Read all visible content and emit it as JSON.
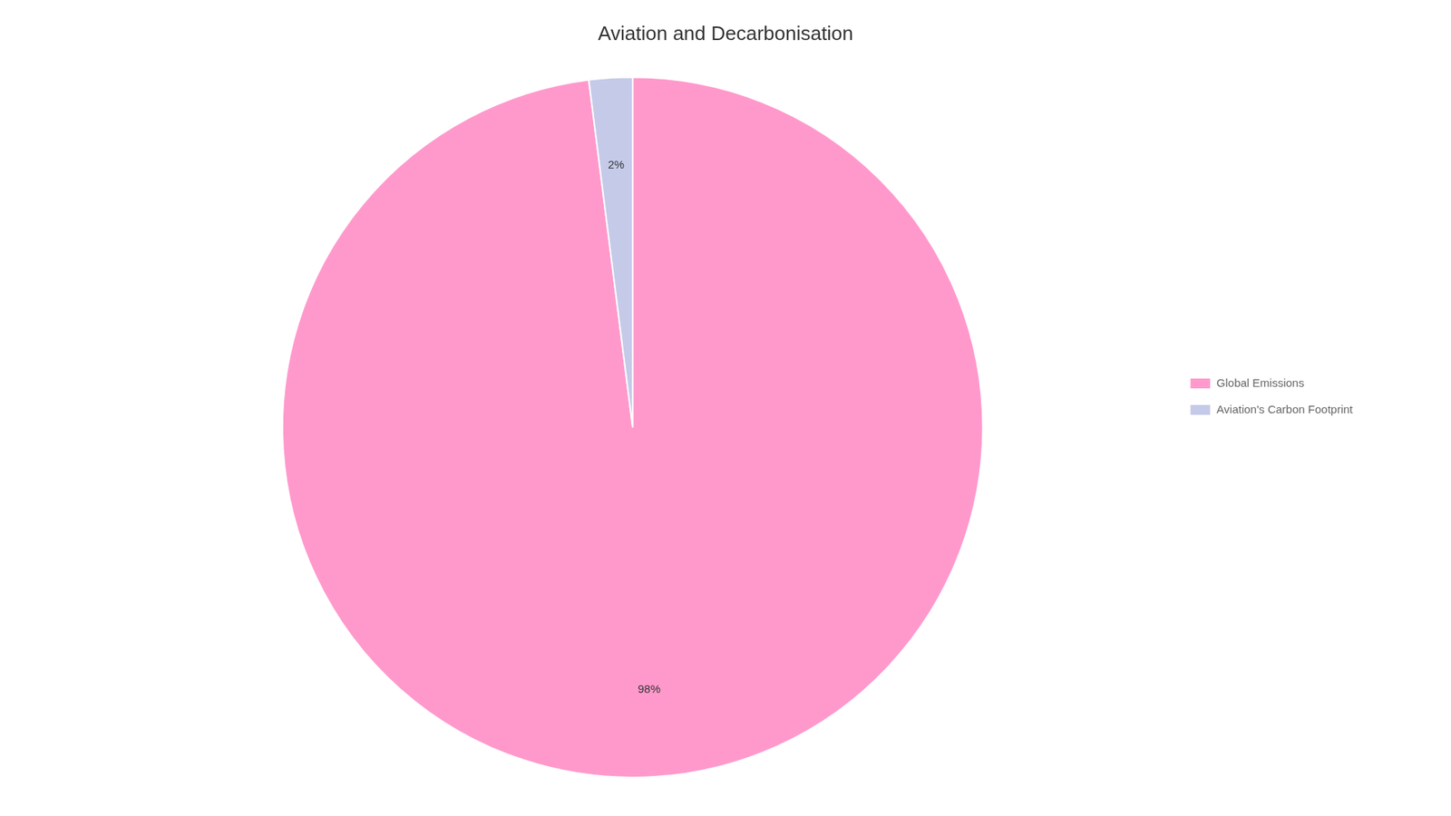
{
  "chart_data": {
    "type": "pie",
    "title": "Aviation and Decarbonisation",
    "categories": [
      "Global Emissions",
      "Aviation's Carbon Footprint"
    ],
    "values": [
      98,
      2
    ],
    "value_labels": [
      "98%",
      "2%"
    ],
    "colors": [
      "#FF99CC",
      "#C5CAE9"
    ],
    "data_labels": true,
    "legend": "right"
  }
}
